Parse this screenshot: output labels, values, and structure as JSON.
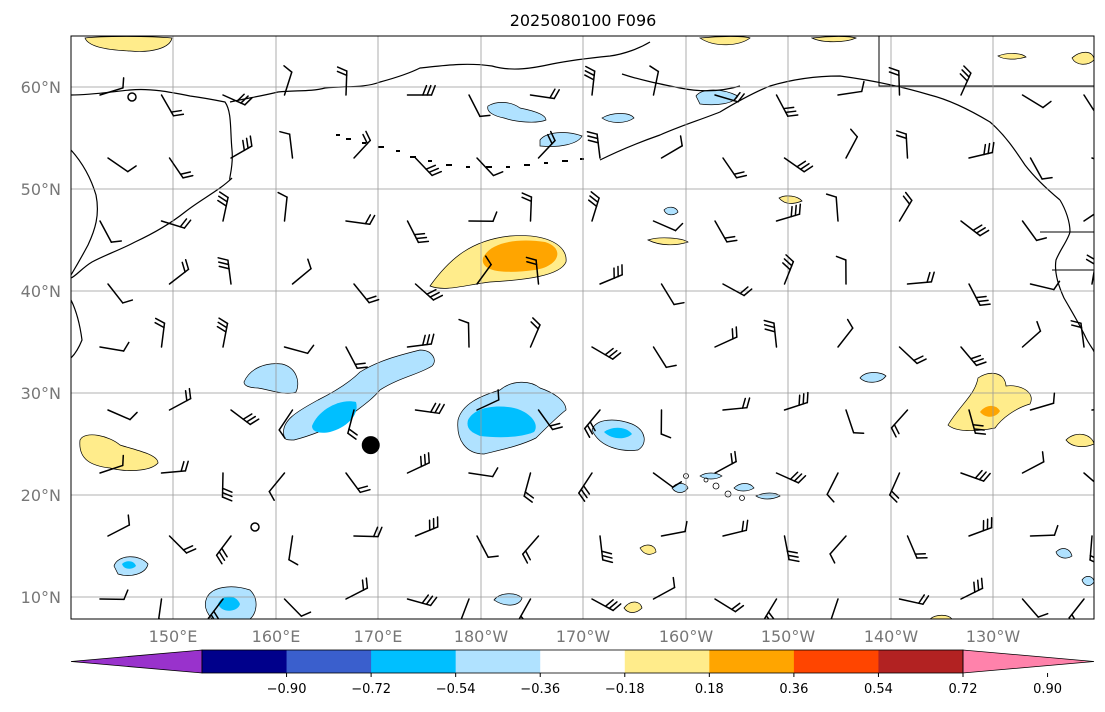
{
  "title": "2025080100 F096",
  "map": {
    "lat_labels": [
      "60°N",
      "50°N",
      "40°N",
      "30°N",
      "20°N",
      "10°N"
    ],
    "lat_values": [
      60,
      50,
      40,
      30,
      20,
      10
    ],
    "lon_labels": [
      "150°E",
      "160°E",
      "170°E",
      "180°W",
      "170°W",
      "160°W",
      "150°W",
      "140°W",
      "130°W"
    ],
    "lon_values": [
      150,
      160,
      170,
      180,
      190,
      200,
      210,
      220,
      230
    ],
    "lon_range": [
      140,
      240
    ],
    "lat_range": [
      8,
      65
    ],
    "marker": {
      "name": "black-dot",
      "lon": 169.3,
      "lat": 25.0
    },
    "field_anomalies": [
      {
        "sign": "positive",
        "level": 0.36,
        "region": "north-central Pacific",
        "center": {
          "lon": 183.5,
          "lat": 43.5
        }
      },
      {
        "sign": "negative",
        "level": -0.54,
        "region": "subtropical band",
        "center": {
          "lon": 167,
          "lat": 27.5
        }
      },
      {
        "sign": "negative",
        "level": -0.54,
        "region": "subtropical band",
        "center": {
          "lon": 180,
          "lat": 26.5
        }
      },
      {
        "sign": "negative",
        "level": -0.54,
        "region": "near Hawaii",
        "center": {
          "lon": 193.5,
          "lat": 25.5
        }
      },
      {
        "sign": "positive",
        "level": 0.36,
        "region": "eastern Pacific",
        "center": {
          "lon": 230,
          "lat": 28
        }
      }
    ]
  },
  "colorbar": {
    "tick_labels": [
      "−0.90",
      "−0.72",
      "−0.54",
      "−0.36",
      "−0.18",
      "0.18",
      "0.36",
      "0.54",
      "0.72",
      "0.90"
    ],
    "colors": [
      "#9932cc",
      "#00008b",
      "#3a5fcd",
      "#00bfff",
      "#b0e2ff",
      "#ffffff",
      "#ffec8b",
      "#ffa500",
      "#ff4500",
      "#b22222",
      "#ff82ab"
    ]
  }
}
